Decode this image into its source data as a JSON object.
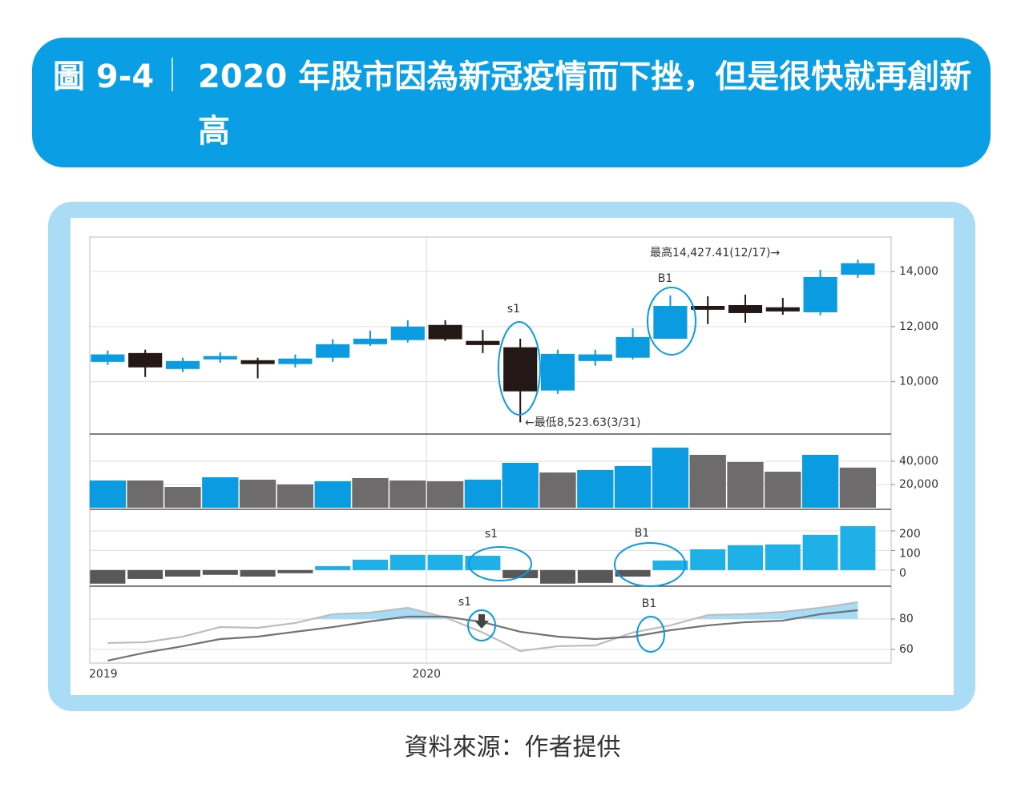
{
  "header": {
    "label": "圖 9-4",
    "title": "2020 年股市因為新冠疫情而下挫，但是很快就再創新高"
  },
  "source": "資料來源：作者提供",
  "chart_data": [
    {
      "type": "candlestick",
      "categories": [
        null,
        null,
        null,
        null,
        null,
        null,
        null,
        null,
        null,
        null,
        null,
        null,
        null,
        null,
        null,
        null,
        null,
        null,
        null,
        null,
        null
      ],
      "xticks": [
        {
          "value": 0,
          "label": "2019"
        },
        {
          "value": 9,
          "label": "2020"
        }
      ],
      "open": [
        10720,
        11040,
        10460,
        10810,
        10780,
        10640,
        10870,
        11360,
        11510,
        12060,
        11480,
        11250,
        9680,
        10750,
        10870,
        11560,
        12750,
        12780,
        12700,
        12520,
        13880
      ],
      "high": [
        11130,
        11160,
        10870,
        11070,
        10870,
        10985,
        11540,
        11850,
        12230,
        12230,
        11880,
        11560,
        11160,
        11160,
        11940,
        13130,
        13100,
        13160,
        13040,
        14060,
        14427.41
      ],
      "low": [
        10610,
        10170,
        10350,
        10690,
        10120,
        10520,
        10720,
        11300,
        11420,
        11480,
        11040,
        8523.63,
        9560,
        10580,
        10810,
        11560,
        12090,
        12140,
        12430,
        12410,
        13770
      ],
      "close": [
        10990,
        10520,
        10750,
        10930,
        10640,
        10840,
        11360,
        11560,
        12000,
        11540,
        11330,
        9650,
        11010,
        10990,
        11620,
        12750,
        12610,
        12490,
        12550,
        13800,
        14300
      ],
      "up_color": "#0a9be0",
      "down_color": "#231815",
      "ylim": [
        8100,
        15250
      ],
      "yticks": [
        {
          "value": 10000,
          "label": "10,000"
        },
        {
          "value": 12000,
          "label": "12,000"
        },
        {
          "value": 14000,
          "label": "14,000"
        }
      ],
      "grid": true,
      "annotations": [
        {
          "text": "最高14,427.41(12/17)→"
        },
        {
          "text": "←最低8,523.63(3/31)"
        },
        {
          "text": "s1"
        },
        {
          "text": "B1"
        }
      ]
    },
    {
      "type": "bar",
      "values": [
        23400,
        23400,
        17900,
        26200,
        24100,
        20000,
        22800,
        25500,
        23400,
        22800,
        24100,
        38600,
        30300,
        32400,
        35900,
        51700,
        45500,
        39300,
        31000,
        45500,
        34500
      ],
      "colors": [
        "#0a9be0",
        "#6d6b6b",
        "#6d6b6b",
        "#0a9be0",
        "#6d6b6b",
        "#6d6b6b",
        "#0a9be0",
        "#6d6b6b",
        "#6d6b6b",
        "#6d6b6b",
        "#0a9be0",
        "#0a9be0",
        "#6d6b6b",
        "#0a9be0",
        "#0a9be0",
        "#0a9be0",
        "#6d6b6b",
        "#6d6b6b",
        "#6d6b6b",
        "#0a9be0",
        "#6d6b6b"
      ],
      "ylim": [
        -1400,
        63400
      ],
      "yticks": [
        {
          "value": 20000,
          "label": "20,000"
        },
        {
          "value": 40000,
          "label": "40,000"
        }
      ],
      "grid": true
    },
    {
      "type": "bar",
      "values": [
        -69,
        -45,
        -33,
        -24,
        -33,
        -16,
        20,
        53,
        78,
        78,
        73,
        -41,
        -69,
        -65,
        -33,
        49,
        106,
        127,
        131,
        180,
        224
      ],
      "positive_color": "#1fb0e8",
      "negative_color": "#595757",
      "ylim": [
        -82,
        310
      ],
      "yticks": [
        0,
        100,
        200
      ],
      "grid": true,
      "annotations": [
        {
          "text": "s1"
        },
        {
          "text": "B1"
        }
      ]
    },
    {
      "type": "line",
      "series": [
        {
          "color": "#bdbdbd",
          "values": [
            64.2,
            64.7,
            68.4,
            74.7,
            74.2,
            77.4,
            83.2,
            84.2,
            87.4,
            81.1,
            71.1,
            58.9,
            62.1,
            62.6,
            71.1,
            75.8,
            82.6,
            83.2,
            84.7,
            87.4,
            91.1
          ]
        },
        {
          "color": "#727171",
          "values": [
            52.6,
            57.9,
            62.1,
            66.8,
            68.4,
            71.6,
            74.7,
            78.4,
            81.6,
            81.6,
            77.9,
            71.6,
            68.4,
            66.8,
            68.4,
            72.6,
            75.8,
            77.9,
            78.9,
            83.2,
            85.8
          ]
        }
      ],
      "fill_color": "#a6dcf5",
      "fill_above": 80,
      "ylim": [
        51,
        101.6
      ],
      "yticks": [
        60,
        80
      ],
      "grid": true,
      "annotations": [
        {
          "text": "s1"
        },
        {
          "text": "B1"
        }
      ]
    }
  ]
}
